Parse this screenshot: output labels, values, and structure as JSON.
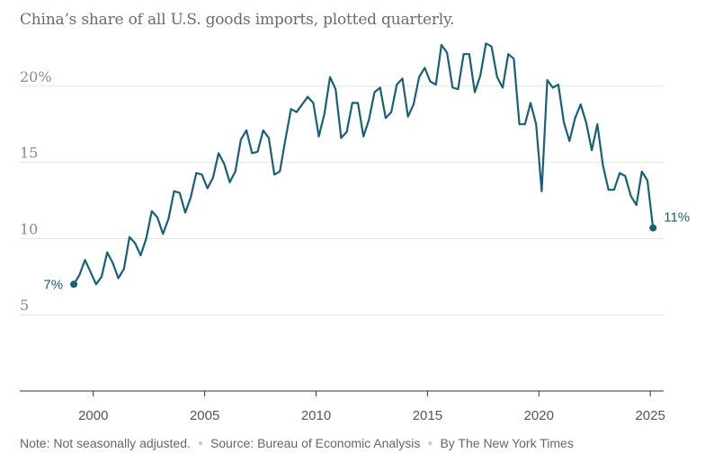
{
  "chart_data": {
    "type": "line",
    "title": "China’s share of all U.S. goods imports, plotted quarterly.",
    "xlabel": "",
    "ylabel": "",
    "y_unit": "percent",
    "xlim": [
      1996.7,
      2025.6
    ],
    "ylim": [
      0,
      24
    ],
    "y_ticks": [
      {
        "value": 5,
        "label": "5"
      },
      {
        "value": 10,
        "label": "10"
      },
      {
        "value": 15,
        "label": "15"
      },
      {
        "value": 20,
        "label": "20%"
      }
    ],
    "x_ticks": [
      {
        "value": 2000,
        "label": "2000"
      },
      {
        "value": 2005,
        "label": "2005"
      },
      {
        "value": 2010,
        "label": "2010"
      },
      {
        "value": 2015,
        "label": "2015"
      },
      {
        "value": 2020,
        "label": "2020"
      },
      {
        "value": 2025,
        "label": "2025"
      }
    ],
    "color": "#17607a",
    "start_label": "7%",
    "end_label": "11%",
    "series": [
      {
        "name": "China share of U.S. goods imports",
        "x": [
          1999.125,
          1999.375,
          1999.625,
          1999.875,
          2000.125,
          2000.375,
          2000.625,
          2000.875,
          2001.125,
          2001.375,
          2001.625,
          2001.875,
          2002.125,
          2002.375,
          2002.625,
          2002.875,
          2003.125,
          2003.375,
          2003.625,
          2003.875,
          2004.125,
          2004.375,
          2004.625,
          2004.875,
          2005.125,
          2005.375,
          2005.625,
          2005.875,
          2006.125,
          2006.375,
          2006.625,
          2006.875,
          2007.125,
          2007.375,
          2007.625,
          2007.875,
          2008.125,
          2008.375,
          2008.625,
          2008.875,
          2009.125,
          2009.375,
          2009.625,
          2009.875,
          2010.125,
          2010.375,
          2010.625,
          2010.875,
          2011.125,
          2011.375,
          2011.625,
          2011.875,
          2012.125,
          2012.375,
          2012.625,
          2012.875,
          2013.125,
          2013.375,
          2013.625,
          2013.875,
          2014.125,
          2014.375,
          2014.625,
          2014.875,
          2015.125,
          2015.375,
          2015.625,
          2015.875,
          2016.125,
          2016.375,
          2016.625,
          2016.875,
          2017.125,
          2017.375,
          2017.625,
          2017.875,
          2018.125,
          2018.375,
          2018.625,
          2018.875,
          2019.125,
          2019.375,
          2019.625,
          2019.875,
          2020.125,
          2020.375,
          2020.625,
          2020.875,
          2021.125,
          2021.375,
          2021.625,
          2021.875,
          2022.125,
          2022.375,
          2022.625,
          2022.875,
          2023.125,
          2023.375,
          2023.625,
          2023.875,
          2024.125,
          2024.375,
          2024.625,
          2024.875,
          2025.125
        ],
        "values": [
          7.0,
          7.6,
          8.6,
          7.8,
          7.0,
          7.5,
          9.1,
          8.4,
          7.4,
          8.0,
          10.1,
          9.7,
          8.9,
          10.0,
          11.8,
          11.4,
          10.3,
          11.3,
          13.1,
          13.0,
          11.7,
          12.7,
          14.3,
          14.2,
          13.3,
          14.0,
          15.6,
          14.9,
          13.7,
          14.4,
          16.5,
          17.1,
          15.6,
          15.7,
          17.1,
          16.6,
          14.2,
          14.4,
          16.5,
          18.5,
          18.3,
          18.8,
          19.3,
          18.9,
          16.7,
          18.2,
          20.6,
          19.8,
          16.6,
          17.0,
          18.9,
          18.9,
          16.7,
          17.8,
          19.6,
          19.9,
          17.9,
          18.3,
          20.1,
          20.5,
          18.0,
          18.8,
          20.6,
          21.2,
          20.3,
          20.1,
          22.7,
          22.2,
          19.9,
          19.8,
          22.1,
          22.1,
          19.6,
          20.7,
          22.8,
          22.6,
          20.6,
          19.9,
          22.1,
          21.8,
          17.5,
          17.5,
          18.9,
          17.5,
          13.1,
          20.4,
          19.9,
          20.1,
          17.6,
          16.4,
          17.9,
          18.8,
          17.6,
          15.8,
          17.5,
          14.8,
          13.2,
          13.2,
          14.3,
          14.1,
          12.8,
          12.2,
          14.4,
          13.8,
          10.7
        ]
      }
    ]
  },
  "footer": {
    "note": "Note: Not seasonally adjusted.",
    "source": "Source: Bureau of Economic Analysis",
    "credit": "By The New York Times"
  }
}
